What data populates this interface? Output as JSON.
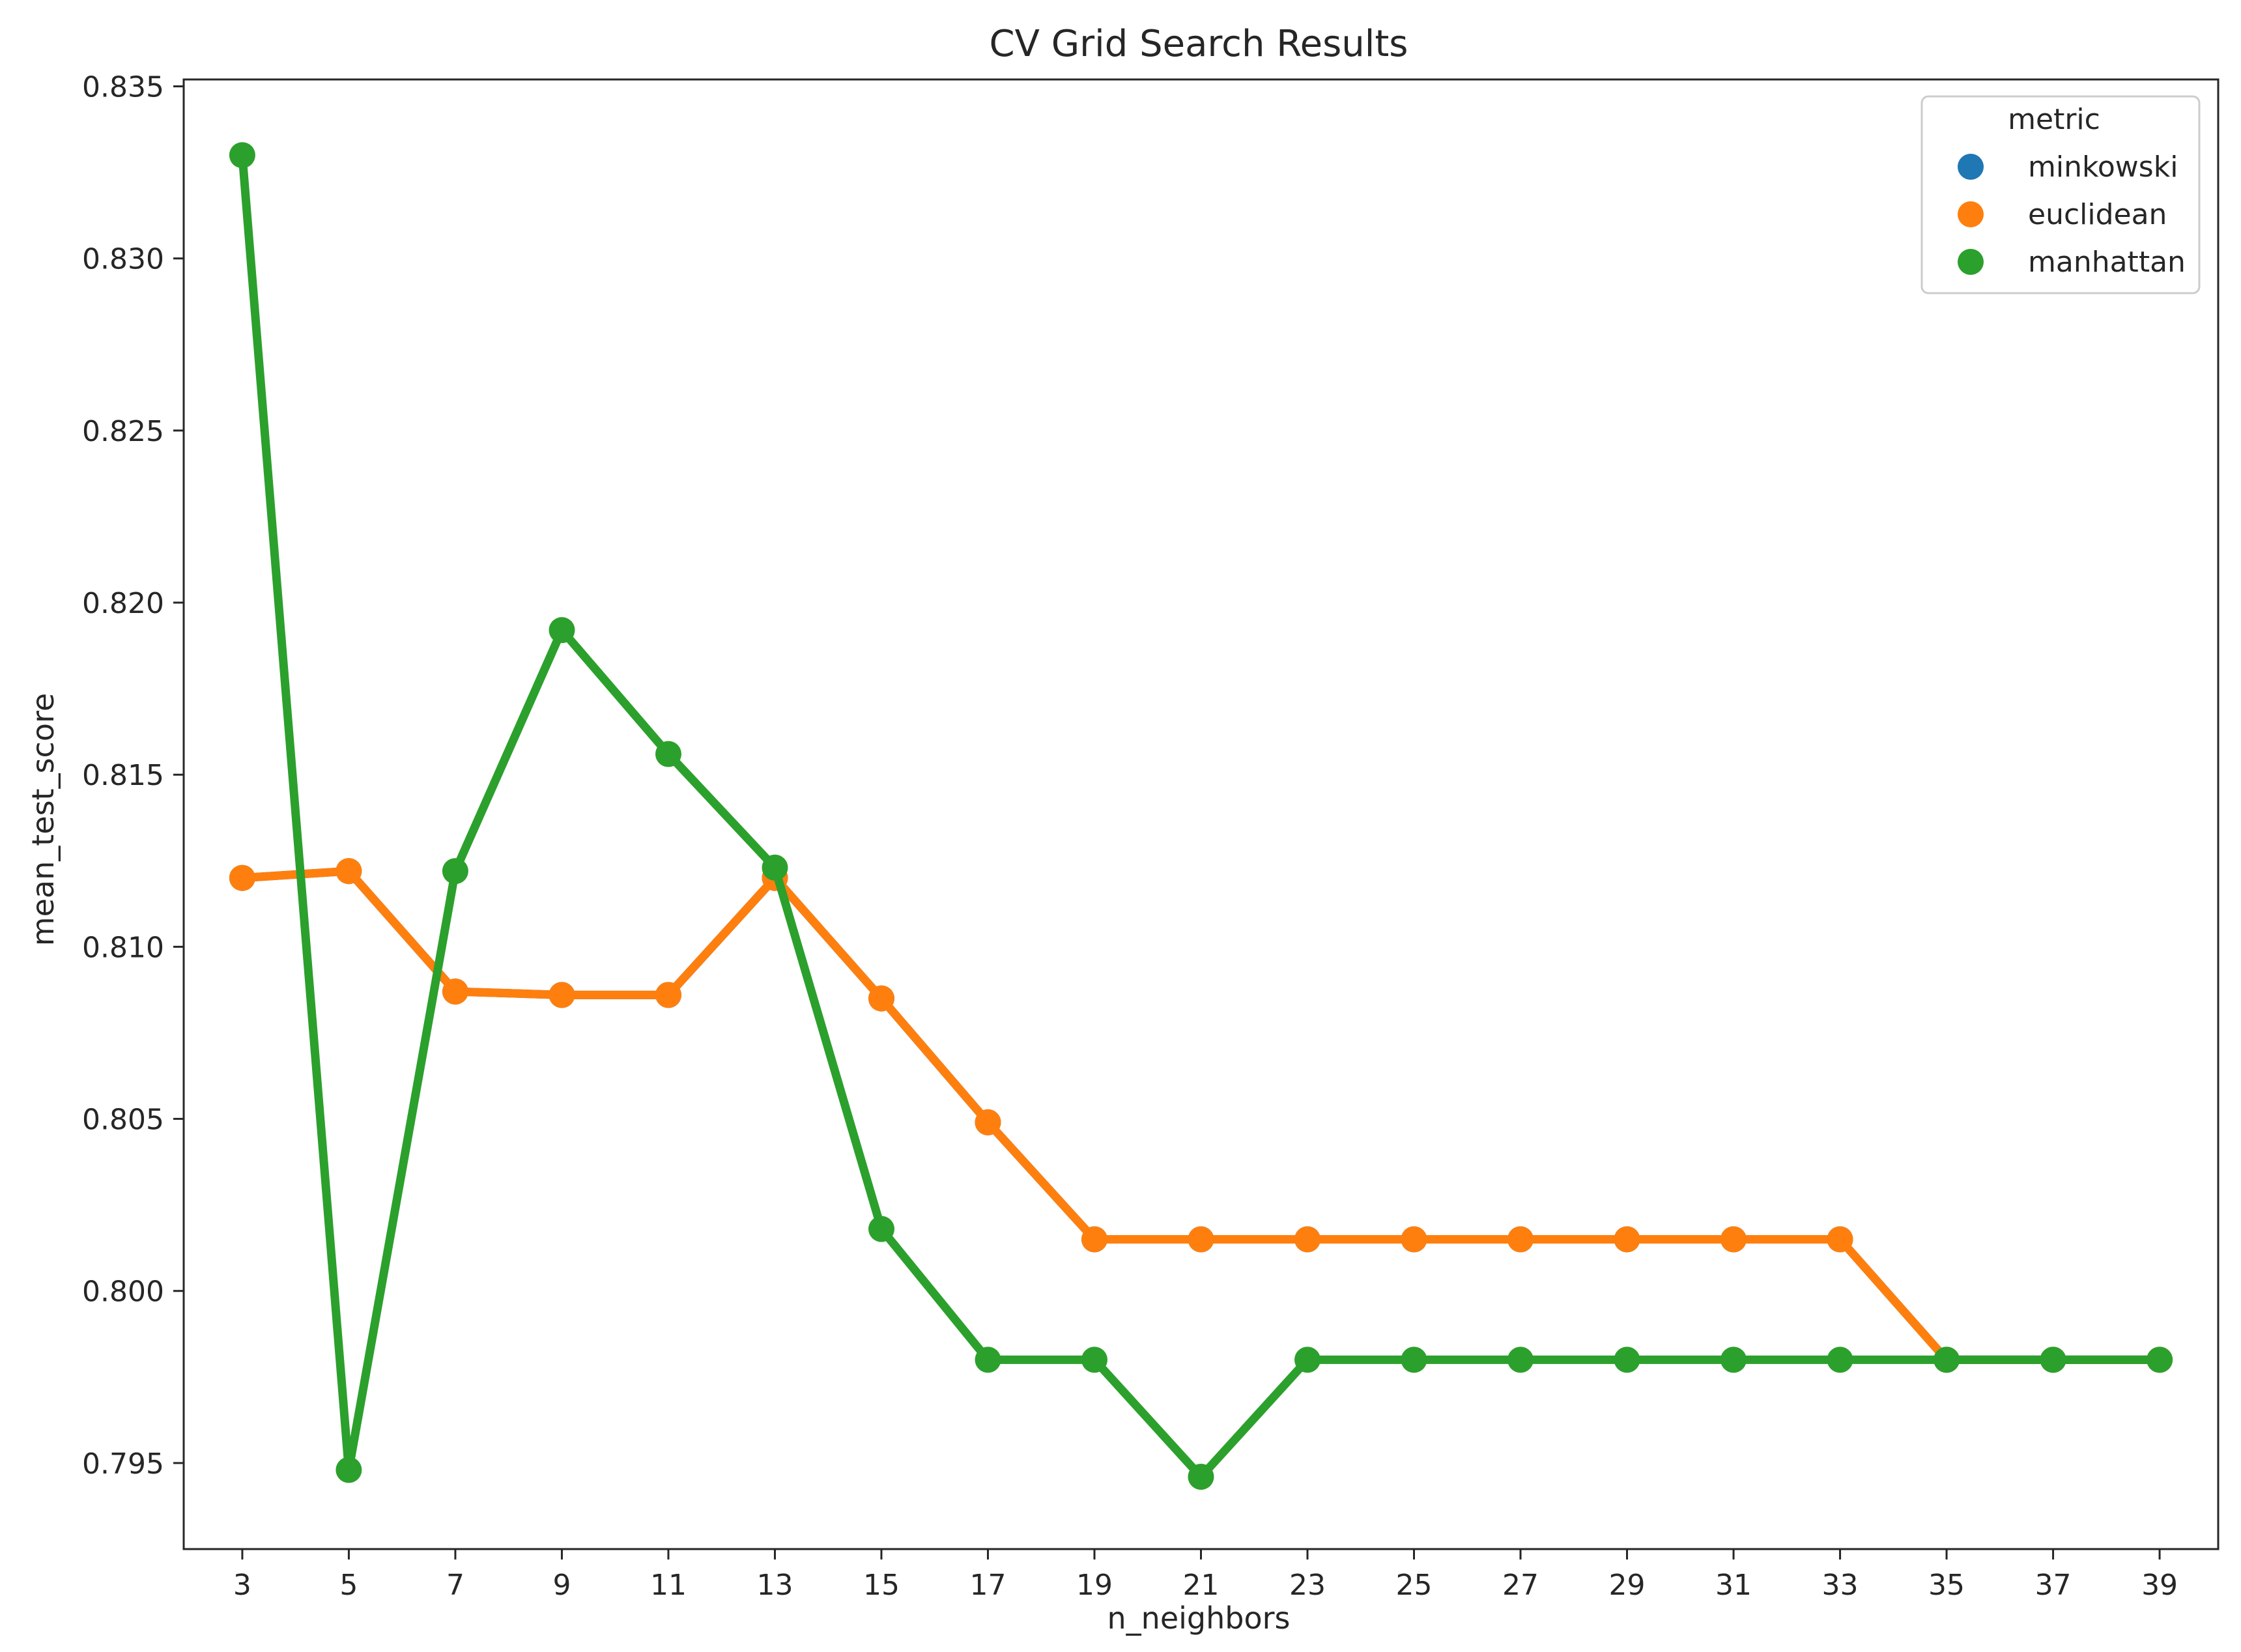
{
  "chart_data": {
    "type": "line",
    "title": "CV Grid Search Results",
    "xlabel": "n_neighbors",
    "ylabel": "mean_test_score",
    "categories": [
      "3",
      "5",
      "7",
      "9",
      "11",
      "13",
      "15",
      "17",
      "19",
      "21",
      "23",
      "25",
      "27",
      "29",
      "31",
      "33",
      "35",
      "37",
      "39"
    ],
    "ylim": [
      0.7925,
      0.8352
    ],
    "yticks": [
      "0.795",
      "0.800",
      "0.805",
      "0.810",
      "0.815",
      "0.820",
      "0.825",
      "0.830",
      "0.835"
    ],
    "ytick_values": [
      0.795,
      0.8,
      0.805,
      0.81,
      0.815,
      0.82,
      0.825,
      0.83,
      0.835
    ],
    "grid": false,
    "legend": {
      "title": "metric",
      "position": "top-right"
    },
    "series": [
      {
        "name": "minkowski",
        "color": "#1f77b4",
        "values": [
          0.812,
          0.8122,
          0.8087,
          0.8086,
          0.8086,
          0.812,
          0.8085,
          0.8049,
          0.8015,
          0.8015,
          0.8015,
          0.8015,
          0.8015,
          0.8015,
          0.8015,
          0.8015,
          0.798,
          0.798,
          0.798
        ]
      },
      {
        "name": "euclidean",
        "color": "#ff7f0e",
        "values": [
          0.812,
          0.8122,
          0.8087,
          0.8086,
          0.8086,
          0.812,
          0.8085,
          0.8049,
          0.8015,
          0.8015,
          0.8015,
          0.8015,
          0.8015,
          0.8015,
          0.8015,
          0.8015,
          0.798,
          0.798,
          0.798
        ]
      },
      {
        "name": "manhattan",
        "color": "#2ca02c",
        "values": [
          0.833,
          0.7948,
          0.8122,
          0.8192,
          0.8156,
          0.8123,
          0.8018,
          0.798,
          0.798,
          0.7946,
          0.798,
          0.798,
          0.798,
          0.798,
          0.798,
          0.798,
          0.798,
          0.798,
          0.798
        ]
      }
    ]
  }
}
